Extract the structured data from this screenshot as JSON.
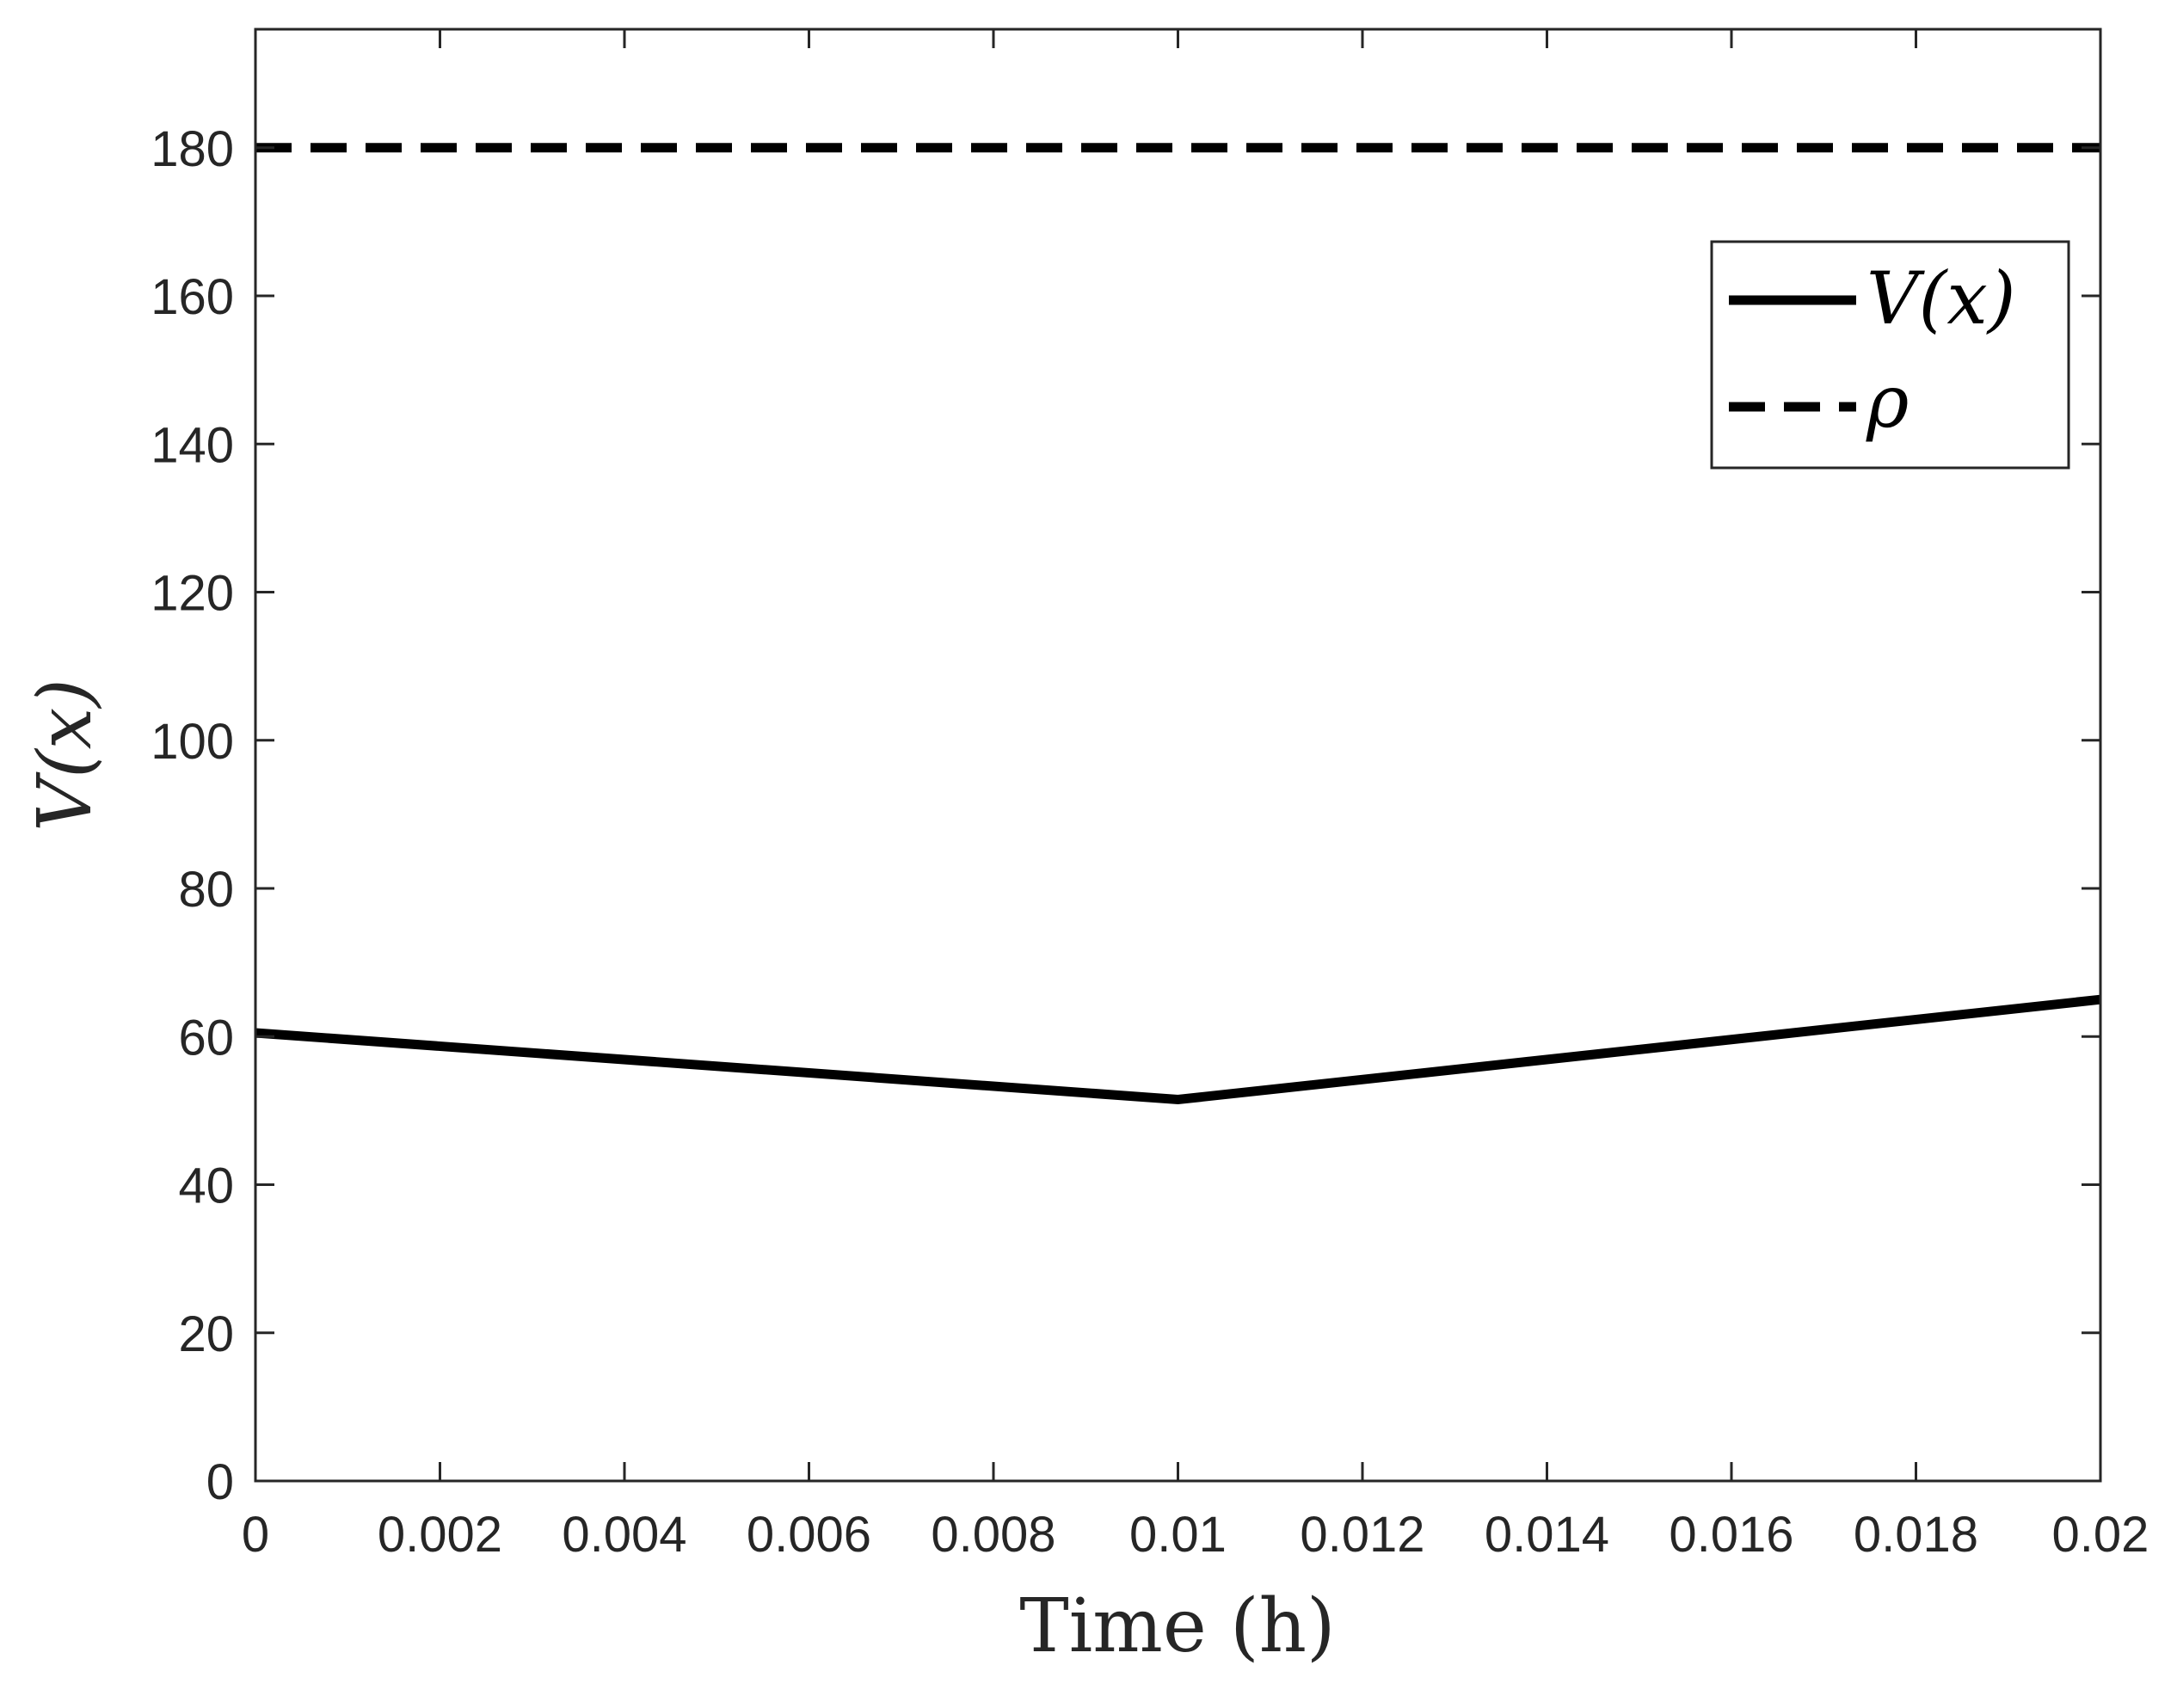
{
  "chart_data": {
    "type": "line",
    "xlabel": "Time (h)",
    "ylabel": "V(x)",
    "xlim": [
      0,
      0.02
    ],
    "ylim": [
      0,
      196
    ],
    "x_ticks": [
      0,
      0.002,
      0.004,
      0.006,
      0.008,
      0.01,
      0.012,
      0.014,
      0.016,
      0.018,
      0.02
    ],
    "x_tick_labels": [
      "0",
      "0.002",
      "0.004",
      "0.006",
      "0.008",
      "0.01",
      "0.012",
      "0.014",
      "0.016",
      "0.018",
      "0.02"
    ],
    "y_ticks": [
      0,
      20,
      40,
      60,
      80,
      100,
      120,
      140,
      160,
      180
    ],
    "y_tick_labels": [
      "0",
      "20",
      "40",
      "60",
      "80",
      "100",
      "120",
      "140",
      "160",
      "180"
    ],
    "grid": false,
    "legend_position": "top-right",
    "series": [
      {
        "name": "V(x)",
        "style": "solid",
        "color": "#000000",
        "x": [
          0,
          0.01,
          0.02
        ],
        "y": [
          60.5,
          51.5,
          65
        ]
      },
      {
        "name": "ρ",
        "style": "dashed",
        "color": "#000000",
        "x": [
          0,
          0.02
        ],
        "y": [
          180,
          180
        ]
      }
    ]
  }
}
